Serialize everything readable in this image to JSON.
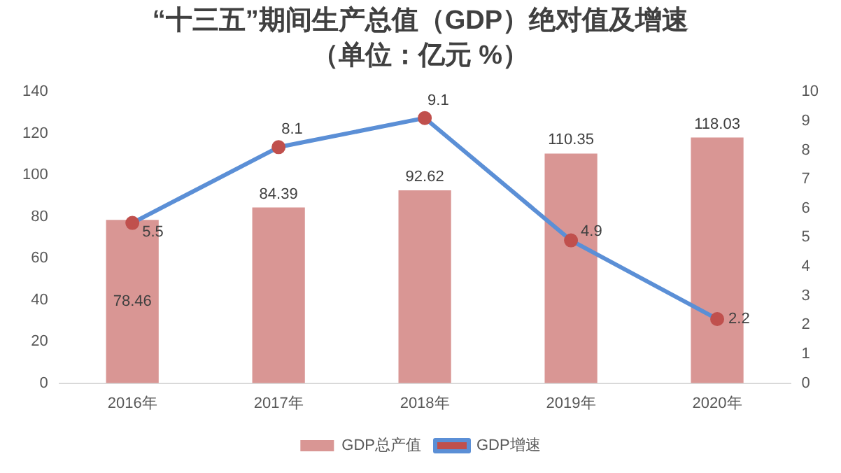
{
  "chart_data": {
    "type": "bar",
    "title": "“十三五”期间生产总值（GDP）绝对值及增速",
    "subtitle": "（单位：亿元 %）",
    "categories": [
      "2016年",
      "2017年",
      "2018年",
      "2019年",
      "2020年"
    ],
    "series": [
      {
        "name": "GDP总产值",
        "color": "#d99694",
        "values": [
          78.46,
          84.39,
          92.62,
          110.35,
          118.03
        ]
      },
      {
        "name": "GDP增速",
        "type": "line",
        "axis": "y2",
        "color": "#5b8fd6",
        "colors": [
          "#c0504d",
          "#c0504d",
          "#c0504d",
          "#c0504d",
          "#c0504d"
        ],
        "values": [
          5.5,
          8.1,
          9.1,
          4.9,
          2.2
        ]
      }
    ],
    "ylim": [
      0,
      140
    ],
    "yticks": [
      0,
      20,
      40,
      60,
      80,
      100,
      120,
      140
    ],
    "y2lim": [
      0,
      10
    ],
    "y2ticks": [
      0,
      1,
      2,
      3,
      4,
      5,
      6,
      7,
      8,
      9,
      10
    ],
    "grid": false,
    "legend": "bottom",
    "marker": "circle",
    "line_style": "solid",
    "data_labels": true
  }
}
